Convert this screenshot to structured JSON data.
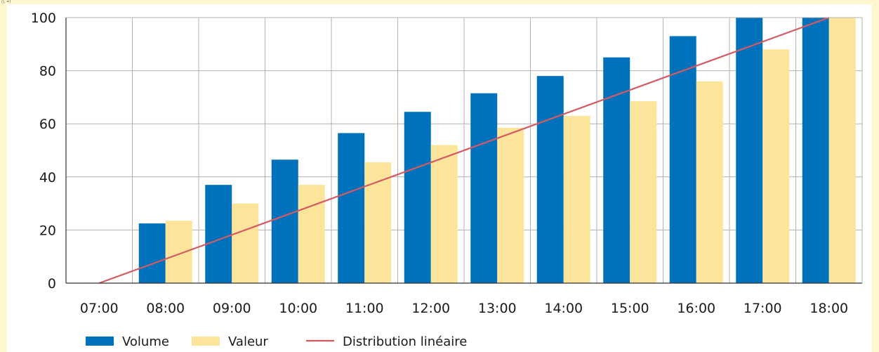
{
  "corner_text": "(), =)",
  "colors": {
    "volume": "#0072bb",
    "valeur": "#fde49b",
    "line": "#d45a62",
    "grid": "#b3b3b3",
    "axis": "#333333",
    "background": "#fff7d0"
  },
  "chart_data": {
    "type": "bar",
    "title": "",
    "xlabel": "",
    "ylabel": "",
    "ylim": [
      0,
      100
    ],
    "yticks": [
      "0",
      "20",
      "40",
      "60",
      "80",
      "100"
    ],
    "categories": [
      "07:00",
      "08:00",
      "09:00",
      "10:00",
      "11:00",
      "12:00",
      "13:00",
      "14:00",
      "15:00",
      "16:00",
      "17:00",
      "18:00"
    ],
    "series": [
      {
        "name": "Volume",
        "kind": "bar",
        "color": "#0072bb",
        "values": [
          0,
          22.5,
          37,
          46.5,
          56.5,
          64.5,
          71.5,
          78,
          85,
          93,
          100,
          100
        ]
      },
      {
        "name": "Valeur",
        "kind": "bar",
        "color": "#fde49b",
        "values": [
          0,
          23.5,
          30,
          37,
          45.5,
          52,
          58.5,
          63,
          68.5,
          76,
          88,
          100
        ]
      },
      {
        "name": "Distribution linéaire",
        "kind": "line",
        "color": "#d45a62",
        "x": [
          "07:00",
          "18:00"
        ],
        "values": [
          0,
          100
        ]
      }
    ],
    "grid": true,
    "legend_position": "bottom-left"
  }
}
